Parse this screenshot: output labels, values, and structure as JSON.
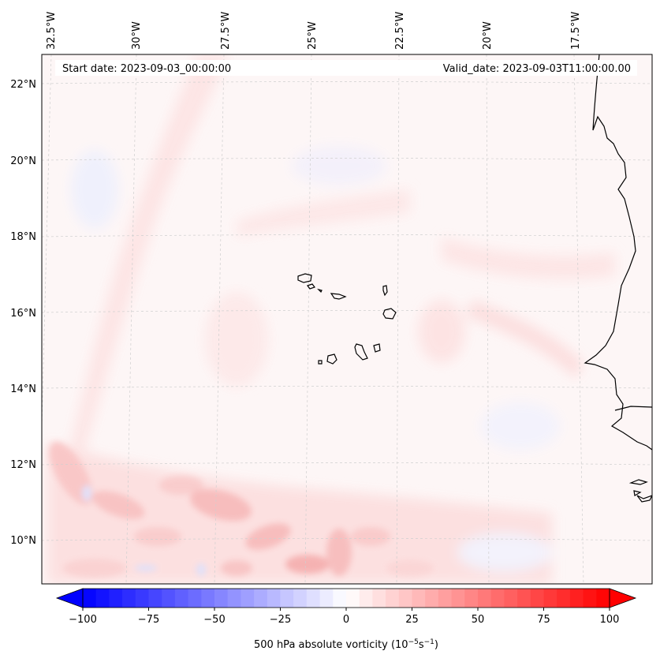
{
  "header": {
    "start_date": "Start date: 2023-09-03_00:00:00",
    "valid_date": "Valid_date: 2023-09-03T11:00:00.00"
  },
  "axes": {
    "lon_labels": [
      "32.5°W",
      "30°W",
      "27.5°W",
      "25°W",
      "22.5°W",
      "20°W",
      "17.5°W"
    ],
    "lat_labels": [
      "22°N",
      "20°N",
      "18°N",
      "16°N",
      "14°N",
      "12°N",
      "10°N"
    ]
  },
  "colorbar": {
    "label": "500 hPa absolute vorticity (10",
    "label_sup1": "−5",
    "label_mid": "s",
    "label_sup2": "−1",
    "label_end": ")",
    "ticks": [
      "−100",
      "−75",
      "−50",
      "−25",
      "0",
      "25",
      "50",
      "75",
      "100"
    ],
    "min": -100,
    "max": 100,
    "colors": {
      "low": "#0000ff",
      "mid": "#ffffff",
      "high": "#ff0000"
    }
  },
  "map": {
    "background_color": "#fdf6f6",
    "coast_color": "#000000",
    "grid_color": "#cccccc"
  }
}
